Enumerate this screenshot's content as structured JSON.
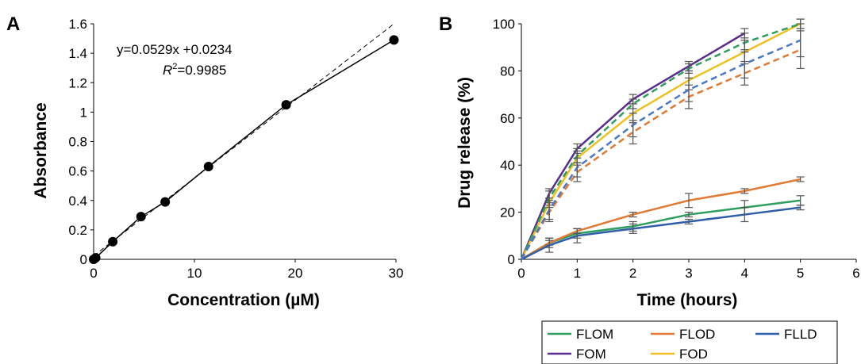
{
  "chart_data": [
    {
      "panel_label": "A",
      "type": "line",
      "xlabel": "Concentration (µM)",
      "ylabel": "Absorbance",
      "xlim": [
        0,
        30
      ],
      "ylim": [
        0,
        1.6
      ],
      "x_ticks": [
        "0",
        "10",
        "20",
        "30"
      ],
      "y_ticks": [
        "0",
        "0.2",
        "0.4",
        "0.6",
        "0.8",
        "1",
        "1.2",
        "1.4",
        "1.6"
      ],
      "grid": false,
      "series": [
        {
          "x": [
            0,
            0.2,
            1.9,
            4.7,
            7.1,
            11.4,
            19.1,
            29.8
          ],
          "y": [
            0,
            0.01,
            0.12,
            0.29,
            0.39,
            0.63,
            1.05,
            1.49
          ]
        }
      ],
      "fit": {
        "slope": 0.0529,
        "intercept": 0.0234,
        "x_range": [
          0,
          29.8
        ]
      },
      "equation": "y=0.0529x +0.0234",
      "r2_letter": "R",
      "r2_sup": "2",
      "r2_value": "=0.9985"
    },
    {
      "panel_label": "B",
      "type": "line",
      "xlabel": "Time (hours)",
      "ylabel": "Drug release (%)",
      "xlim": [
        0,
        6
      ],
      "ylim": [
        0,
        100
      ],
      "x_ticks": [
        "0",
        "1",
        "2",
        "3",
        "4",
        "5",
        "6"
      ],
      "y_ticks": [
        "0",
        "20",
        "40",
        "60",
        "80",
        "100"
      ],
      "grid": false,
      "legend_position": "bottom",
      "x": [
        0,
        0.5,
        1,
        2,
        3,
        4,
        5
      ],
      "series": [
        {
          "name": "FLOM",
          "color": "#2e9e5f",
          "dash": false,
          "values": [
            0,
            7,
            11,
            14,
            19,
            22,
            25
          ],
          "errors": [
            0,
            2,
            2,
            2,
            1,
            3,
            2
          ]
        },
        {
          "name": "FLOD",
          "color": "#e07a34",
          "dash": false,
          "values": [
            0,
            7,
            12,
            19,
            25,
            29,
            34
          ],
          "errors": [
            0,
            1,
            1,
            1,
            3,
            1,
            1
          ]
        },
        {
          "name": "FLLD",
          "color": "#2e5fa8",
          "dash": false,
          "values": [
            0,
            6,
            10,
            13,
            16,
            19,
            22
          ],
          "errors": [
            0,
            3,
            3,
            2,
            1,
            3,
            1
          ]
        },
        {
          "name": "FOM",
          "color": "#5b2d8f",
          "dash": false,
          "values": [
            0,
            28,
            47,
            68,
            82,
            96,
            null
          ],
          "errors": [
            0,
            2,
            2,
            2,
            2,
            2,
            0
          ]
        },
        {
          "name": "FOD",
          "color": "#f0c020",
          "dash": false,
          "values": [
            0,
            24,
            43,
            62,
            76,
            88,
            100
          ],
          "errors": [
            0,
            2,
            3,
            4,
            4,
            5,
            2
          ]
        },
        {
          "name": "",
          "color": "#2e9e5f",
          "dash": true,
          "values": [
            0,
            26,
            44,
            66,
            81,
            92,
            100
          ],
          "errors": [
            0,
            3,
            3,
            2,
            2,
            4,
            2
          ]
        },
        {
          "name": "",
          "color": "#e07a34",
          "dash": true,
          "values": [
            0,
            20,
            37,
            54,
            69,
            79,
            89
          ],
          "errors": [
            0,
            4,
            4,
            5,
            5,
            5,
            8
          ]
        },
        {
          "name": "",
          "color": "#4a78c8",
          "dash": true,
          "values": [
            0,
            21,
            39,
            57,
            72,
            83,
            93
          ],
          "errors": [
            0,
            4,
            4,
            5,
            5,
            6,
            7
          ]
        }
      ],
      "legend": [
        "FLOM",
        "FLOD",
        "FLLD",
        "FOM",
        "FOD"
      ]
    }
  ]
}
